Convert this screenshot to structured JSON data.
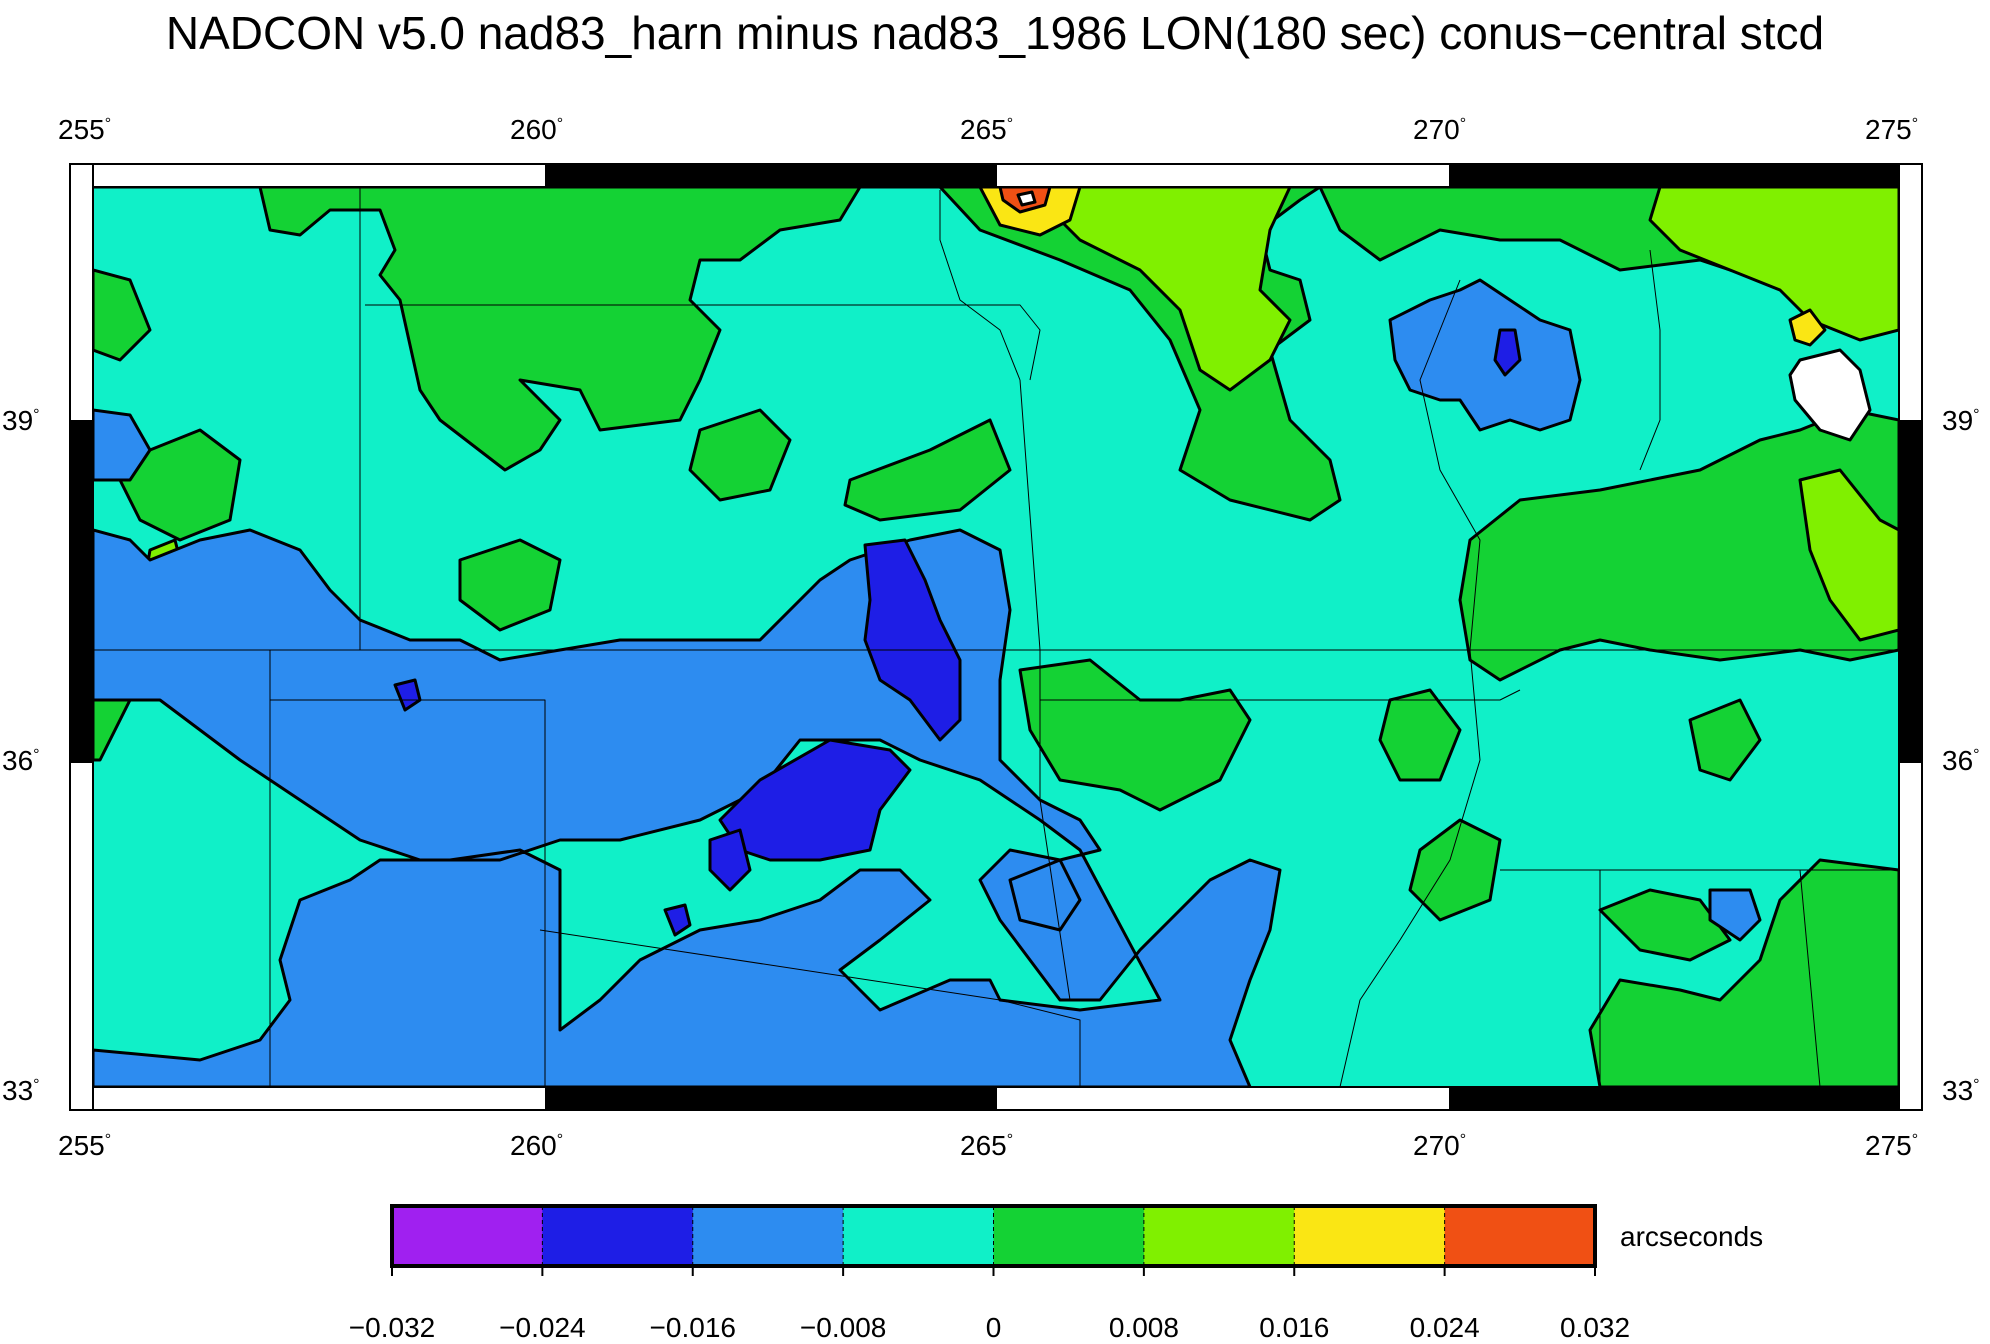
{
  "title": "NADCON v5.0 nad83_harn minus nad83_1986 LON(180 sec) conus−central stcd",
  "axes": {
    "x_ticks": [
      "255",
      "260",
      "265",
      "270",
      "275"
    ],
    "y_ticks": [
      "39",
      "36",
      "33"
    ],
    "degree_symbol": "°"
  },
  "colorbar": {
    "unit_label": "arcseconds",
    "tick_labels": [
      "−0.032",
      "−0.024",
      "−0.016",
      "−0.008",
      "0",
      "0.008",
      "0.016",
      "0.024",
      "0.032"
    ],
    "colors": [
      "#a020f0",
      "#1e1ee6",
      "#2d8cf0",
      "#10f0c8",
      "#14d234",
      "#80f000",
      "#fae614",
      "#f05014"
    ]
  },
  "chart_data": {
    "type": "heatmap",
    "title": "NADCON v5.0 nad83_harn minus nad83_1986 LON(180 sec) conus−central stcd",
    "xlim": [
      255,
      275
    ],
    "ylim": [
      33,
      41
    ],
    "x_ticks": [
      255,
      260,
      265,
      270,
      275
    ],
    "y_ticks": [
      33,
      36,
      39
    ],
    "colorbar_unit": "arcseconds",
    "levels": [
      -0.032,
      -0.024,
      -0.016,
      -0.008,
      0,
      0.008,
      0.016,
      0.024,
      0.032
    ]
  }
}
